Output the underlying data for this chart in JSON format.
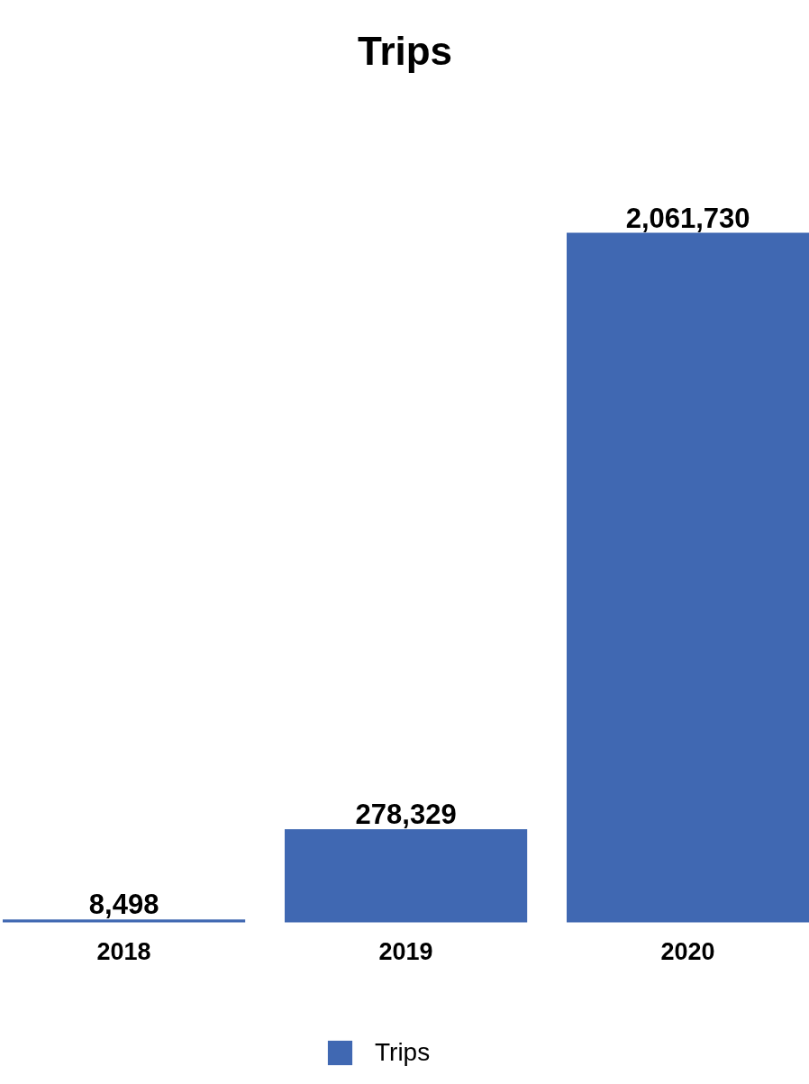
{
  "chart_data": {
    "type": "bar",
    "title": "Trips",
    "categories": [
      "2018",
      "2019",
      "2020"
    ],
    "series": [
      {
        "name": "Trips",
        "color": "#4068b2",
        "values": [
          8498,
          278329,
          2061730
        ],
        "value_labels": [
          "8,498",
          "278,329",
          "2,061,730"
        ]
      }
    ],
    "legend": "bottom",
    "grid": false,
    "tick_labels": "x"
  }
}
